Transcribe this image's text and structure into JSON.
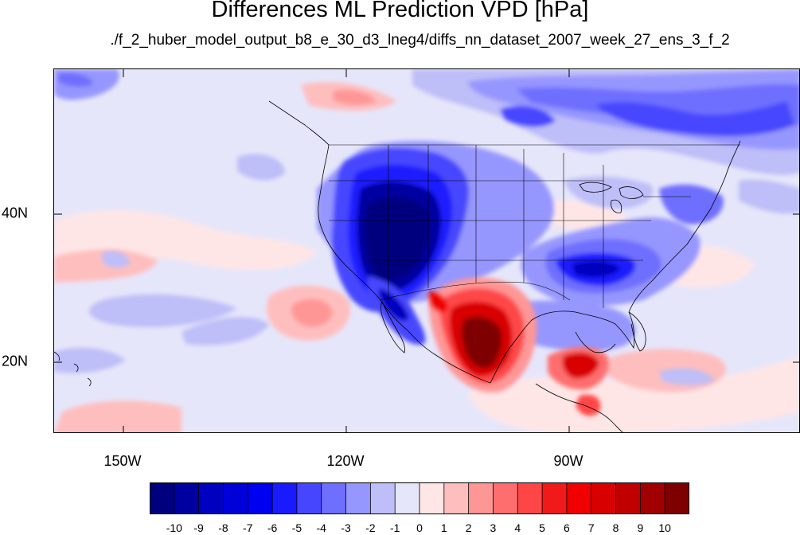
{
  "title": "Differences ML Prediction VPD [hPa]",
  "subtitle": "./f_2_huber_model_output_b8_e_30_d3_lneg4/diffs_nn_dataset_2007_week_27_ens_3_f_2",
  "map": {
    "projection": "cylindrical equidistant",
    "lon_range": [
      -160,
      -60
    ],
    "lat_range": [
      11,
      60
    ],
    "lon_ticks": [
      {
        "value": -150,
        "label": "150W"
      },
      {
        "value": -120,
        "label": "120W"
      },
      {
        "value": -90,
        "label": "90W"
      }
    ],
    "lat_ticks": [
      {
        "value": 40,
        "label": "40N"
      },
      {
        "value": 20,
        "label": "20N"
      }
    ],
    "background_class": "-1 to 0 (light lavender)"
  },
  "colorbar": {
    "labels": [
      "-10",
      "-9",
      "-8",
      "-7",
      "-6",
      "-5",
      "-4",
      "-3",
      "-2",
      "-1",
      "0",
      "1",
      "2",
      "3",
      "4",
      "5",
      "6",
      "7",
      "8",
      "9",
      "10"
    ],
    "colors": [
      "#00007f",
      "#0000a0",
      "#0000c0",
      "#0000d8",
      "#0000f0",
      "#1a1aff",
      "#4646ff",
      "#6e6eff",
      "#9696ff",
      "#bebef8",
      "#e6e6fa",
      "#ffe6e6",
      "#ffbebe",
      "#ff9696",
      "#ff6e6e",
      "#ff4646",
      "#f01a1a",
      "#f00000",
      "#d80000",
      "#c00000",
      "#a00000",
      "#7f0000"
    ]
  },
  "chart_data": {
    "type": "heatmap",
    "title": "Differences ML Prediction VPD [hPa]",
    "subtitle": "./f_2_huber_model_output_b8_e_30_d3_lneg4/diffs_nn_dataset_2007_week_27_ens_3_f_2",
    "x_axis": {
      "label": "",
      "ticks": [
        "150W",
        "120W",
        "90W"
      ],
      "range": [
        -160,
        -60
      ]
    },
    "y_axis": {
      "label": "",
      "ticks": [
        "40N",
        "20N"
      ],
      "range": [
        11,
        60
      ]
    },
    "color_scale": {
      "min": -10,
      "max": 10,
      "step": 1,
      "units": "hPa"
    },
    "regions": [
      {
        "lon": [
          -118,
          -105
        ],
        "lat": [
          30,
          43
        ],
        "value": -10
      },
      {
        "lon": [
          -113,
          -107
        ],
        "lat": [
          23,
          32
        ],
        "value": -10
      },
      {
        "lon": [
          -95,
          -80
        ],
        "lat": [
          30,
          36
        ],
        "value": -6
      },
      {
        "lon": [
          -85,
          -68
        ],
        "lat": [
          53,
          58
        ],
        "value": -5
      },
      {
        "lon": [
          -106,
          -99
        ],
        "lat": [
          19,
          31
        ],
        "value": 9
      },
      {
        "lon": [
          -92,
          -89
        ],
        "lat": [
          16,
          21
        ],
        "value": 7
      },
      {
        "lon": [
          -155,
          -150
        ],
        "lat": [
          50,
          57
        ],
        "value": -3
      },
      {
        "lon": [
          -138,
          -128
        ],
        "lat": [
          22,
          30
        ],
        "value": 2
      },
      {
        "lon": [
          -130,
          -120
        ],
        "lat": [
          54,
          57
        ],
        "value": 3
      }
    ]
  }
}
